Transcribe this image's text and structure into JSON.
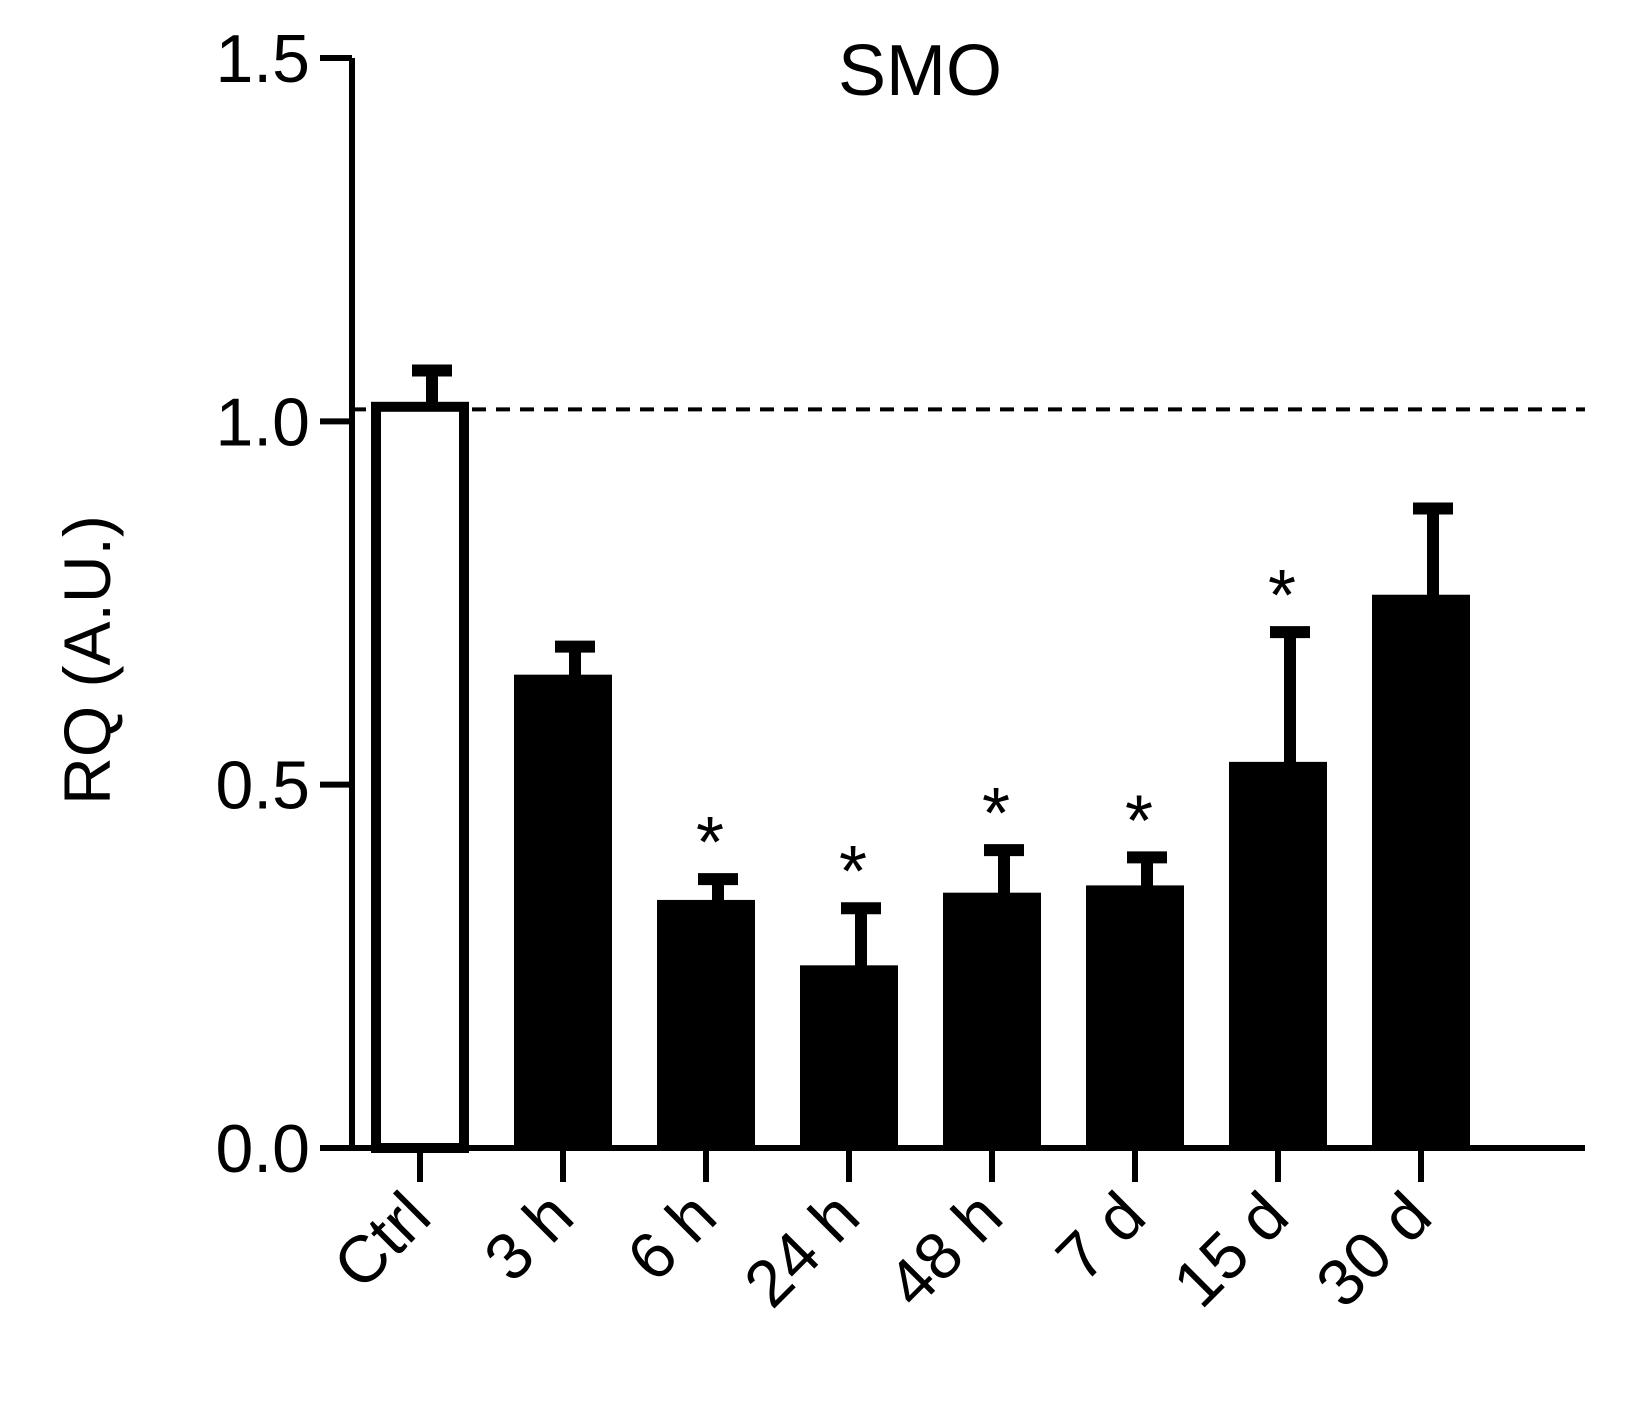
{
  "chart_data": {
    "type": "bar",
    "title": "SMO",
    "xlabel": "",
    "ylabel": "RQ (A.U.)",
    "ylim": [
      0,
      1.5
    ],
    "yticks": [
      "0.0",
      "0.5",
      "1.0",
      "1.5"
    ],
    "reference_line": 1.0,
    "categories": [
      "Ctrl",
      "3 h",
      "6 h",
      "24 h",
      "48 h",
      "7 d",
      "15 d",
      "30 d"
    ],
    "values": [
      1.02,
      0.65,
      0.34,
      0.25,
      0.35,
      0.36,
      0.53,
      0.76
    ],
    "errors": [
      0.05,
      0.04,
      0.03,
      0.08,
      0.06,
      0.04,
      0.18,
      0.12
    ],
    "significant": [
      false,
      false,
      true,
      true,
      true,
      true,
      true,
      false
    ],
    "significance_mark": "*",
    "bar_colors": [
      "#ffffff",
      "#000000",
      "#000000",
      "#000000",
      "#000000",
      "#000000",
      "#000000",
      "#000000"
    ],
    "grid": false
  }
}
